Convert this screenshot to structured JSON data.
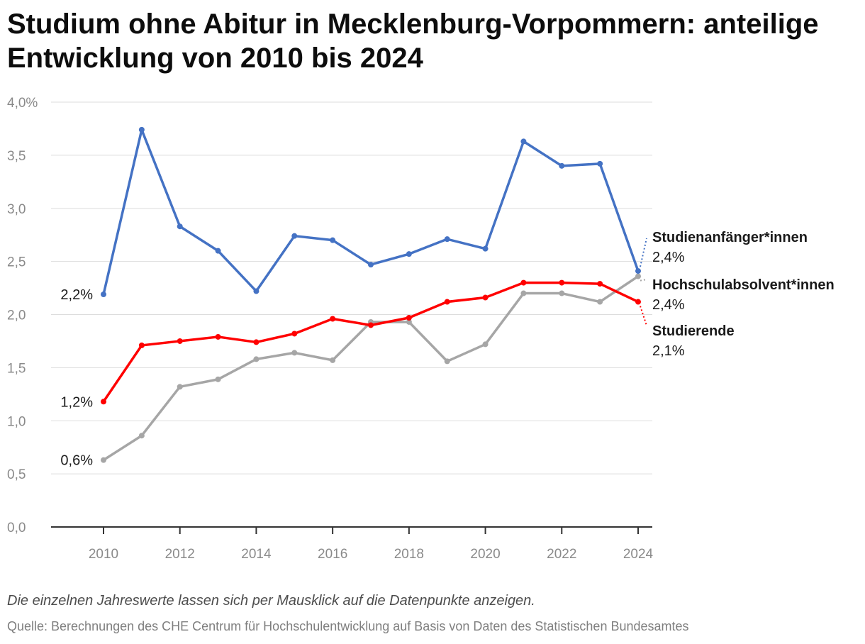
{
  "chart_data": {
    "type": "line",
    "title": "Studium ohne Abitur in Mecklenburg-Vorpommern: anteilige Entwicklung von 2010 bis 2024",
    "xlabel": "",
    "ylabel": "",
    "x": [
      2010,
      2011,
      2012,
      2013,
      2014,
      2015,
      2016,
      2017,
      2018,
      2019,
      2020,
      2021,
      2022,
      2023,
      2024
    ],
    "x_tick_labels": [
      "2010",
      "2012",
      "2014",
      "2016",
      "2018",
      "2020",
      "2022",
      "2024"
    ],
    "x_tick_values": [
      2010,
      2012,
      2014,
      2016,
      2018,
      2020,
      2022,
      2024
    ],
    "ylim": [
      0,
      4.0
    ],
    "y_ticks": [
      0,
      0.5,
      1.0,
      1.5,
      2.0,
      2.5,
      3.0,
      3.5,
      4.0
    ],
    "y_tick_labels": [
      "0,0",
      "0,5",
      "1,0",
      "1,5",
      "2,0",
      "2,5",
      "3,0",
      "3,5",
      "4,0%"
    ],
    "grid": true,
    "series": [
      {
        "name": "Studienanfänger*innen",
        "color": "#4472c4",
        "values": [
          2.19,
          3.74,
          2.83,
          2.6,
          2.22,
          2.74,
          2.7,
          2.47,
          2.57,
          2.71,
          2.62,
          3.63,
          3.4,
          3.42,
          2.41
        ],
        "start_label": "2,2%",
        "end_label": "2,4%"
      },
      {
        "name": "Hochschulabsolvent*innen",
        "color": "#a6a6a6",
        "values": [
          0.63,
          0.86,
          1.32,
          1.39,
          1.58,
          1.64,
          1.57,
          1.93,
          1.93,
          1.56,
          1.72,
          2.2,
          2.2,
          2.12,
          2.36
        ],
        "start_label": "0,6%",
        "end_label": "2,4%"
      },
      {
        "name": "Studierende",
        "color": "#ff0000",
        "values": [
          1.18,
          1.71,
          1.75,
          1.79,
          1.74,
          1.82,
          1.96,
          1.9,
          1.97,
          2.12,
          2.16,
          2.3,
          2.3,
          2.29,
          2.12
        ],
        "start_label": "1,2%",
        "end_label": "2,1%"
      }
    ]
  },
  "note": "Die einzelnen Jahreswerte lassen sich per Mausklick auf die Datenpunkte anzeigen.",
  "source": "Quelle: Berechnungen des CHE Centrum für Hochschulentwicklung auf Basis von Daten des Statistischen Bundesamtes"
}
